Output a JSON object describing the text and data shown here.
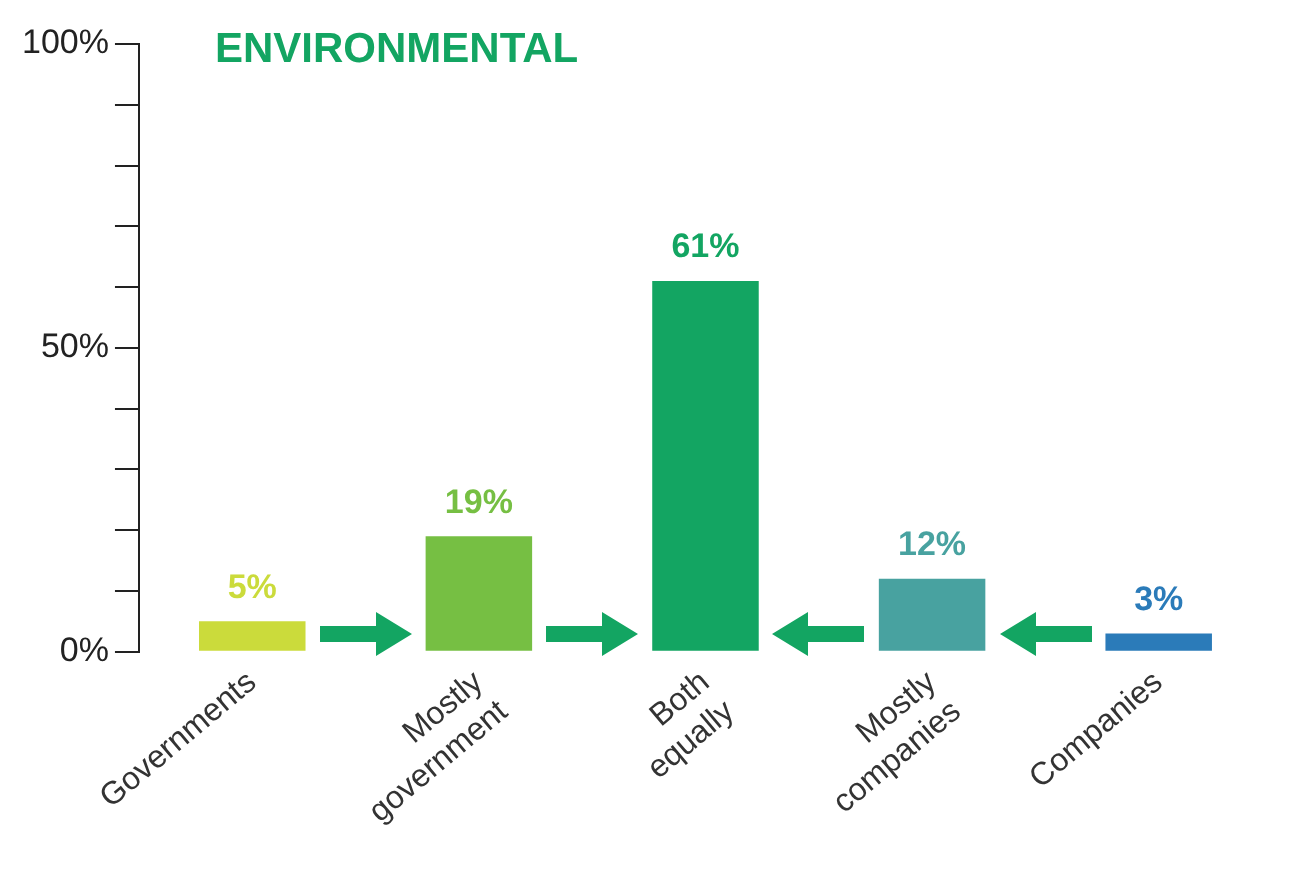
{
  "chart_data": {
    "type": "bar",
    "title": "ENVIRONMENTAL",
    "categories": [
      "Governments",
      "Mostly government",
      "Both equally",
      "Mostly companies",
      "Companies"
    ],
    "values": [
      5,
      19,
      61,
      12,
      3
    ],
    "colors": [
      "#cbdb3b",
      "#76bf43",
      "#13a562",
      "#48a2a0",
      "#2b7bb9"
    ],
    "value_labels": [
      "5%",
      "19%",
      "61%",
      "12%",
      "3%"
    ],
    "ylim": [
      0,
      100
    ],
    "yticks": [
      {
        "value": 0,
        "label": "0%"
      },
      {
        "value": 10,
        "label": null
      },
      {
        "value": 20,
        "label": null
      },
      {
        "value": 30,
        "label": null
      },
      {
        "value": 40,
        "label": null
      },
      {
        "value": 50,
        "label": "50%"
      },
      {
        "value": 60,
        "label": null
      },
      {
        "value": 70,
        "label": null
      },
      {
        "value": 80,
        "label": null
      },
      {
        "value": 90,
        "label": null
      },
      {
        "value": 100,
        "label": "100%"
      }
    ],
    "grid": false,
    "legend": false
  }
}
